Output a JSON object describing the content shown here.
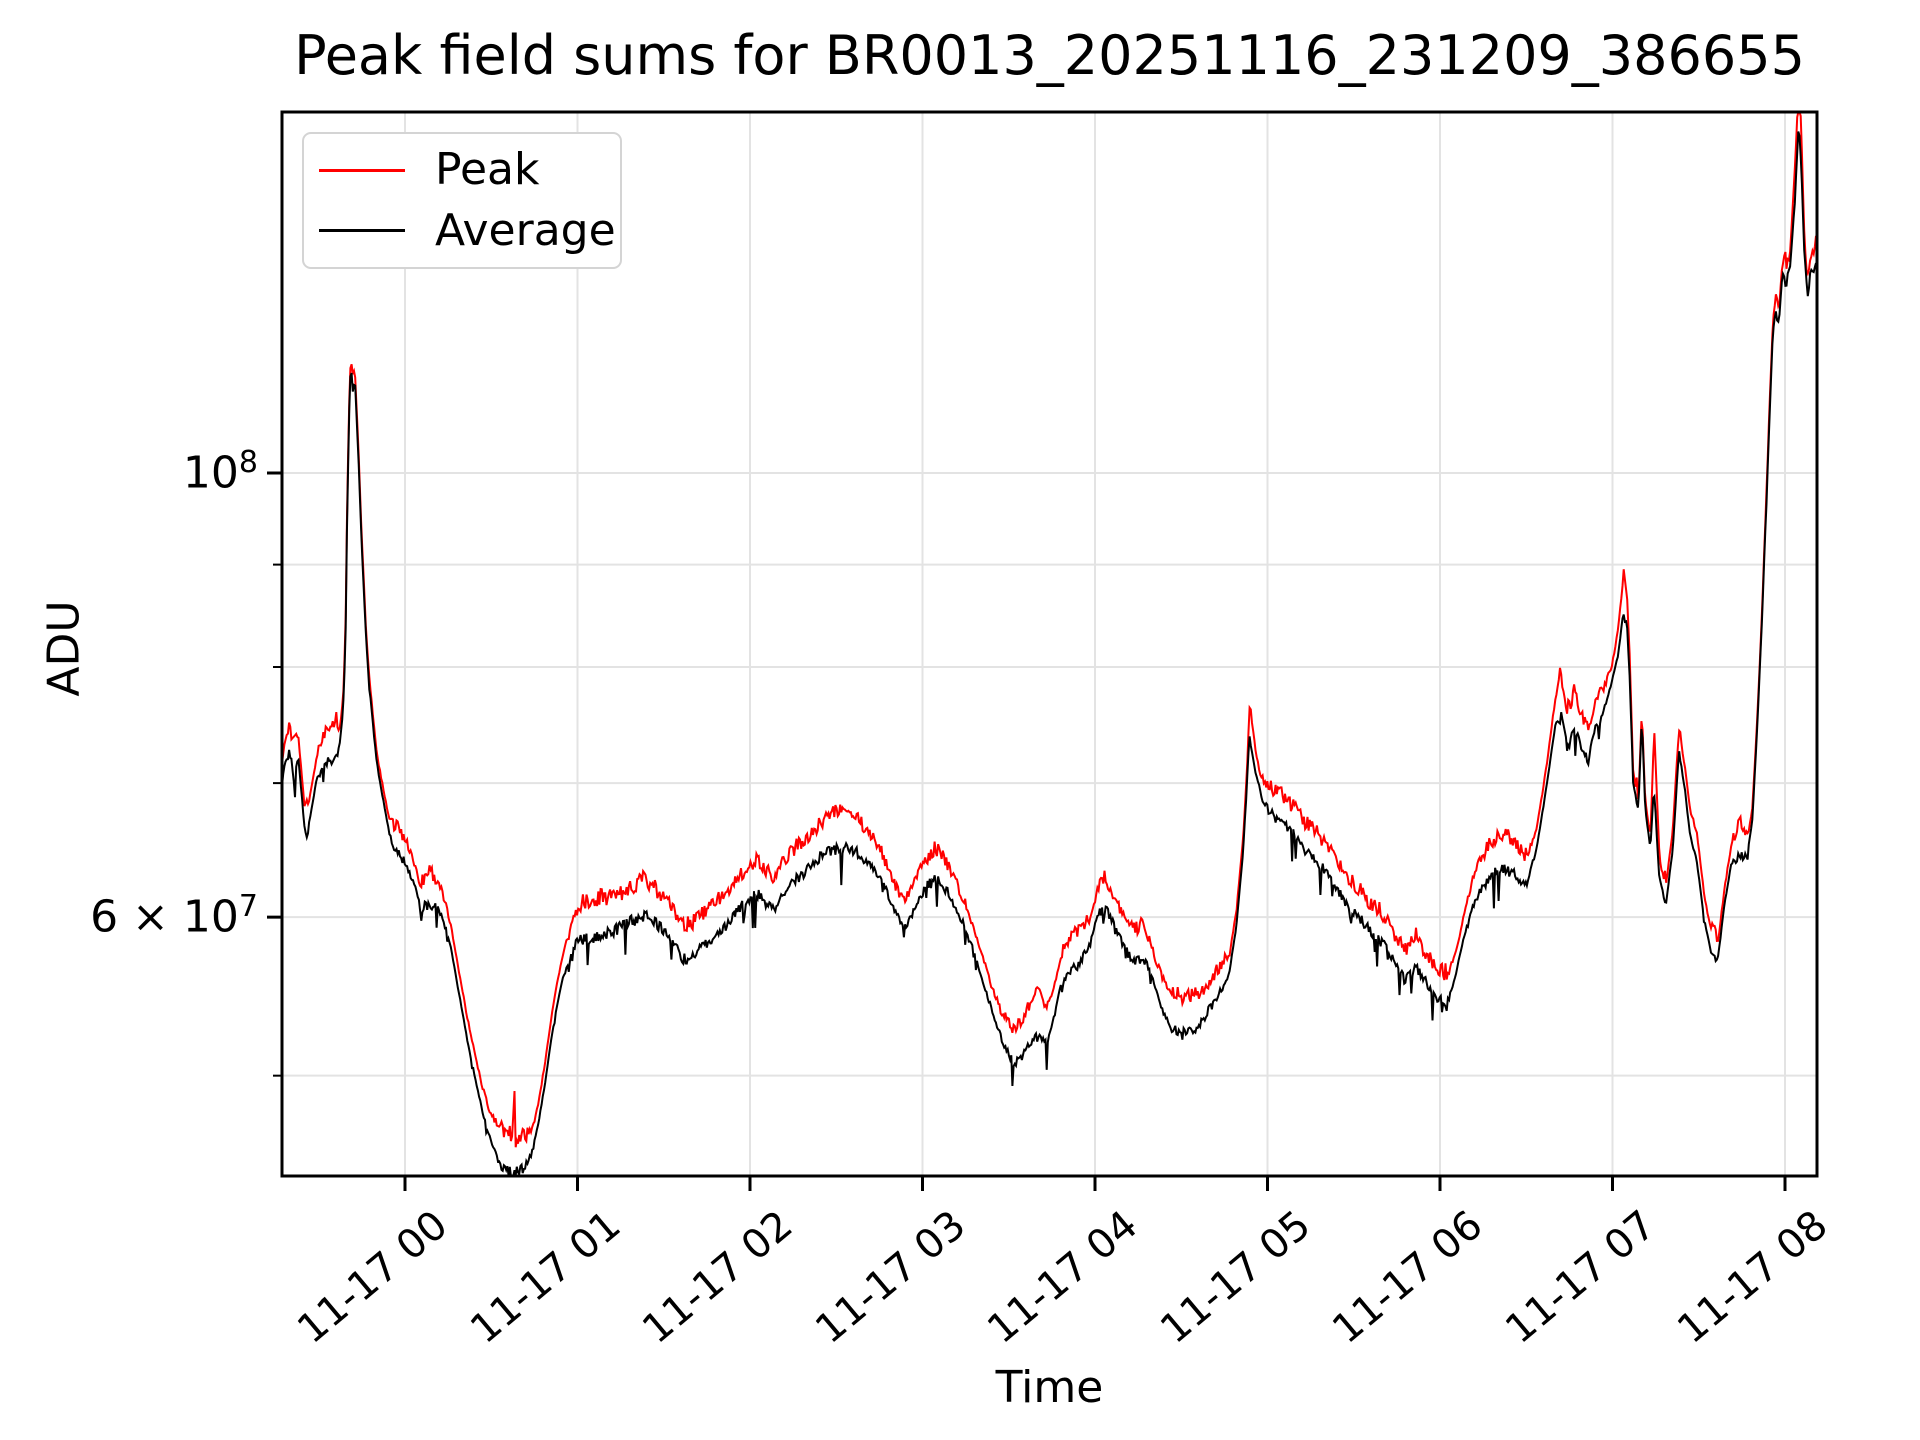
{
  "title": "Peak field sums for BR0013_20251116_231209_386655",
  "legend": {
    "items": [
      {
        "label": "Peak",
        "color": "#ff0000"
      },
      {
        "label": "Average",
        "color": "#000000"
      }
    ]
  },
  "axes": {
    "xlabel": "Time",
    "ylabel": "ADU",
    "x_ticks": [
      {
        "t": 0,
        "label": "11-17 00"
      },
      {
        "t": 1,
        "label": "11-17 01"
      },
      {
        "t": 2,
        "label": "11-17 02"
      },
      {
        "t": 3,
        "label": "11-17 03"
      },
      {
        "t": 4,
        "label": "11-17 04"
      },
      {
        "t": 5,
        "label": "11-17 05"
      },
      {
        "t": 6,
        "label": "11-17 06"
      },
      {
        "t": 7,
        "label": "11-17 07"
      },
      {
        "t": 8,
        "label": "11-17 08"
      }
    ],
    "y_major_ticks": [
      {
        "value": 100000000,
        "prefix": "",
        "mantissa": "10",
        "exp": "8"
      },
      {
        "value": 60000000,
        "prefix": "6 × ",
        "mantissa": "10",
        "exp": "7"
      }
    ],
    "y_minor_tick_values": [
      90000000,
      80000000,
      70000000,
      50000000
    ]
  },
  "style": {
    "peak_color": "#ff0000",
    "average_color": "#000000",
    "grid_color": "#e3e3e3",
    "frame_color": "#000000",
    "background": "#ffffff"
  },
  "chart_data": {
    "type": "line",
    "title": "Peak field sums for BR0013_20251116_231209_386655",
    "xlabel": "Time",
    "ylabel": "ADU",
    "x_unit": "hours relative to 2025-11-17 00:00",
    "x_range": [
      -0.713,
      8.18
    ],
    "y_scale": "log",
    "y_range": [
      44500000,
      151500000
    ],
    "grid": true,
    "legend_position": "upper left",
    "noise": {
      "seed": 987654321,
      "samples": 1300,
      "band_max": 0.04,
      "band_min": 0.006,
      "slope_damping": 0.1
    },
    "series": [
      {
        "name": "Peak",
        "color": "#ff0000",
        "relation": "average_baseline × ratio, with upward noise band",
        "ratio_anchors": [
          [
            -0.72,
            1.02
          ],
          [
            -0.4,
            1.025
          ],
          [
            -0.36,
            1.01
          ],
          [
            -0.32,
            1.008
          ],
          [
            -0.28,
            1.008
          ],
          [
            -0.22,
            1.006
          ],
          [
            -0.05,
            1.015
          ],
          [
            0.1,
            1.02
          ],
          [
            0.45,
            1.025
          ],
          [
            0.6,
            1.028
          ],
          [
            0.625,
            1.02
          ],
          [
            0.632,
            1.11
          ],
          [
            0.64,
            1.02
          ],
          [
            0.75,
            1.02
          ],
          [
            1.0,
            1.024
          ],
          [
            2.0,
            1.024
          ],
          [
            2.6,
            1.022
          ],
          [
            3.1,
            1.018
          ],
          [
            3.45,
            1.02
          ],
          [
            3.65,
            1.035
          ],
          [
            3.9,
            1.025
          ],
          [
            4.05,
            1.02
          ],
          [
            4.45,
            1.028
          ],
          [
            4.8,
            1.015
          ],
          [
            4.88,
            1.01
          ],
          [
            4.9,
            1.035
          ],
          [
            4.95,
            1.015
          ],
          [
            5.3,
            1.018
          ],
          [
            6.0,
            1.02
          ],
          [
            6.3,
            1.025
          ],
          [
            6.6,
            1.02
          ],
          [
            6.72,
            1.035
          ],
          [
            7.0,
            1.015
          ],
          [
            7.07,
            1.04
          ],
          [
            7.12,
            1.01
          ],
          [
            7.17,
            1.005
          ],
          [
            7.22,
            1.01
          ],
          [
            7.245,
            1.065
          ],
          [
            7.28,
            1.015
          ],
          [
            7.5,
            1.03
          ],
          [
            7.62,
            1.015
          ],
          [
            7.75,
            1.02
          ],
          [
            7.85,
            1.005
          ],
          [
            7.95,
            1.012
          ],
          [
            8.02,
            1.008
          ],
          [
            8.06,
            1.035
          ],
          [
            8.09,
            1.045
          ],
          [
            8.12,
            1.01
          ],
          [
            8.18,
            1.012
          ]
        ]
      },
      {
        "name": "Average",
        "color": "#000000",
        "anchors": [
          [
            -0.713,
            70000000
          ],
          [
            -0.7,
            71500000
          ],
          [
            -0.67,
            73000000
          ],
          [
            -0.645,
            71000000
          ],
          [
            -0.62,
            72500000
          ],
          [
            -0.58,
            66200000
          ],
          [
            -0.555,
            67000000
          ],
          [
            -0.51,
            70500000
          ],
          [
            -0.46,
            72200000
          ],
          [
            -0.42,
            72500000
          ],
          [
            -0.38,
            73000000
          ],
          [
            -0.36,
            76000000
          ],
          [
            -0.345,
            82000000
          ],
          [
            -0.335,
            96000000
          ],
          [
            -0.322,
            109000000
          ],
          [
            -0.313,
            113500000
          ],
          [
            -0.303,
            110000000
          ],
          [
            -0.292,
            112000000
          ],
          [
            -0.283,
            108000000
          ],
          [
            -0.27,
            102000000
          ],
          [
            -0.255,
            94000000
          ],
          [
            -0.24,
            88000000
          ],
          [
            -0.225,
            82500000
          ],
          [
            -0.21,
            79000000
          ],
          [
            -0.195,
            76500000
          ],
          [
            -0.18,
            74000000
          ],
          [
            -0.165,
            72000000
          ],
          [
            -0.15,
            70500000
          ],
          [
            -0.13,
            69000000
          ],
          [
            -0.11,
            67500000
          ],
          [
            -0.09,
            66200000
          ],
          [
            -0.06,
            65200000
          ],
          [
            -0.03,
            64700000
          ],
          [
            0.0,
            64200000
          ],
          [
            0.04,
            63000000
          ],
          [
            0.07,
            61800000
          ],
          [
            0.095,
            60500000
          ],
          [
            0.12,
            61500000
          ],
          [
            0.15,
            61200000
          ],
          [
            0.18,
            61000000
          ],
          [
            0.21,
            60300000
          ],
          [
            0.24,
            59200000
          ],
          [
            0.27,
            57800000
          ],
          [
            0.3,
            55800000
          ],
          [
            0.33,
            54000000
          ],
          [
            0.36,
            52200000
          ],
          [
            0.39,
            50700000
          ],
          [
            0.42,
            49300000
          ],
          [
            0.45,
            48000000
          ],
          [
            0.48,
            47000000
          ],
          [
            0.51,
            46200000
          ],
          [
            0.55,
            45500000
          ],
          [
            0.59,
            45100000
          ],
          [
            0.63,
            45000000
          ],
          [
            0.67,
            45200000
          ],
          [
            0.71,
            45500000
          ],
          [
            0.745,
            46200000
          ],
          [
            0.775,
            47500000
          ],
          [
            0.81,
            49500000
          ],
          [
            0.845,
            52000000
          ],
          [
            0.88,
            54200000
          ],
          [
            0.91,
            55800000
          ],
          [
            0.945,
            57000000
          ],
          [
            0.975,
            58200000
          ],
          [
            1.01,
            58800000
          ],
          [
            1.06,
            59000000
          ],
          [
            1.12,
            59200000
          ],
          [
            1.18,
            59300000
          ],
          [
            1.25,
            59700000
          ],
          [
            1.32,
            60200000
          ],
          [
            1.39,
            60600000
          ],
          [
            1.45,
            60000000
          ],
          [
            1.51,
            59400000
          ],
          [
            1.56,
            58500000
          ],
          [
            1.6,
            57700000
          ],
          [
            1.64,
            57400000
          ],
          [
            1.69,
            57900000
          ],
          [
            1.74,
            58500000
          ],
          [
            1.8,
            59200000
          ],
          [
            1.87,
            59900000
          ],
          [
            1.94,
            61000000
          ],
          [
            2.0,
            61700000
          ],
          [
            2.05,
            62100000
          ],
          [
            2.1,
            61200000
          ],
          [
            2.14,
            60900000
          ],
          [
            2.2,
            62200000
          ],
          [
            2.27,
            63100000
          ],
          [
            2.34,
            63800000
          ],
          [
            2.41,
            64800000
          ],
          [
            2.48,
            65300000
          ],
          [
            2.55,
            65500000
          ],
          [
            2.62,
            65000000
          ],
          [
            2.69,
            64200000
          ],
          [
            2.76,
            63000000
          ],
          [
            2.83,
            61000000
          ],
          [
            2.89,
            59400000
          ],
          [
            2.95,
            60800000
          ],
          [
            3.02,
            62500000
          ],
          [
            3.08,
            63200000
          ],
          [
            3.14,
            62200000
          ],
          [
            3.2,
            60800000
          ],
          [
            3.26,
            59200000
          ],
          [
            3.32,
            57000000
          ],
          [
            3.39,
            54500000
          ],
          [
            3.46,
            52300000
          ],
          [
            3.53,
            50900000
          ],
          [
            3.58,
            51400000
          ],
          [
            3.63,
            52400000
          ],
          [
            3.68,
            52700000
          ],
          [
            3.72,
            52000000
          ],
          [
            3.76,
            53500000
          ],
          [
            3.8,
            55500000
          ],
          [
            3.85,
            56500000
          ],
          [
            3.91,
            57300000
          ],
          [
            3.97,
            58300000
          ],
          [
            4.02,
            60500000
          ],
          [
            4.06,
            61000000
          ],
          [
            4.11,
            59800000
          ],
          [
            4.17,
            58200000
          ],
          [
            4.23,
            57300000
          ],
          [
            4.28,
            57600000
          ],
          [
            4.33,
            56200000
          ],
          [
            4.38,
            54500000
          ],
          [
            4.44,
            53200000
          ],
          [
            4.52,
            52800000
          ],
          [
            4.6,
            53200000
          ],
          [
            4.66,
            54200000
          ],
          [
            4.72,
            55200000
          ],
          [
            4.78,
            56500000
          ],
          [
            4.82,
            59500000
          ],
          [
            4.86,
            65000000
          ],
          [
            4.895,
            74000000
          ],
          [
            4.93,
            71000000
          ],
          [
            4.97,
            69000000
          ],
          [
            5.02,
            68000000
          ],
          [
            5.08,
            67300000
          ],
          [
            5.15,
            66500000
          ],
          [
            5.22,
            65200000
          ],
          [
            5.3,
            64200000
          ],
          [
            5.38,
            62800000
          ],
          [
            5.46,
            61200000
          ],
          [
            5.54,
            60200000
          ],
          [
            5.62,
            59000000
          ],
          [
            5.68,
            58500000
          ],
          [
            5.74,
            57200000
          ],
          [
            5.8,
            56200000
          ],
          [
            5.86,
            57000000
          ],
          [
            5.93,
            55800000
          ],
          [
            5.99,
            55000000
          ],
          [
            6.04,
            54500000
          ],
          [
            6.09,
            56200000
          ],
          [
            6.14,
            58800000
          ],
          [
            6.19,
            61000000
          ],
          [
            6.25,
            62500000
          ],
          [
            6.31,
            63500000
          ],
          [
            6.38,
            64000000
          ],
          [
            6.44,
            63300000
          ],
          [
            6.5,
            62500000
          ],
          [
            6.56,
            65000000
          ],
          [
            6.62,
            70000000
          ],
          [
            6.67,
            75000000
          ],
          [
            6.7,
            76300000
          ],
          [
            6.74,
            73000000
          ],
          [
            6.78,
            75000000
          ],
          [
            6.82,
            73200000
          ],
          [
            6.86,
            72200000
          ],
          [
            6.9,
            74800000
          ],
          [
            6.94,
            76000000
          ],
          [
            6.98,
            77800000
          ],
          [
            7.03,
            81000000
          ],
          [
            7.065,
            85500000
          ],
          [
            7.085,
            84000000
          ],
          [
            7.1,
            79000000
          ],
          [
            7.12,
            70000000
          ],
          [
            7.15,
            68000000
          ],
          [
            7.17,
            75500000
          ],
          [
            7.19,
            68000000
          ],
          [
            7.22,
            65000000
          ],
          [
            7.24,
            70000000
          ],
          [
            7.27,
            63000000
          ],
          [
            7.31,
            61000000
          ],
          [
            7.35,
            65000000
          ],
          [
            7.385,
            72800000
          ],
          [
            7.42,
            69500000
          ],
          [
            7.45,
            66000000
          ],
          [
            7.49,
            64000000
          ],
          [
            7.53,
            60000000
          ],
          [
            7.57,
            57800000
          ],
          [
            7.61,
            57200000
          ],
          [
            7.65,
            61000000
          ],
          [
            7.69,
            64000000
          ],
          [
            7.74,
            65000000
          ],
          [
            7.78,
            64500000
          ],
          [
            7.81,
            67000000
          ],
          [
            7.84,
            75000000
          ],
          [
            7.87,
            86000000
          ],
          [
            7.9,
            101000000
          ],
          [
            7.93,
            118000000
          ],
          [
            7.95,
            121000000
          ],
          [
            7.965,
            119000000
          ],
          [
            7.985,
            126000000
          ],
          [
            8.005,
            125000000
          ],
          [
            8.03,
            127000000
          ],
          [
            8.055,
            136000000
          ],
          [
            8.08,
            150000000
          ],
          [
            8.095,
            142000000
          ],
          [
            8.11,
            130000000
          ],
          [
            8.13,
            123000000
          ],
          [
            8.145,
            126000000
          ],
          [
            8.165,
            127000000
          ],
          [
            8.18,
            128000000
          ]
        ]
      }
    ]
  }
}
